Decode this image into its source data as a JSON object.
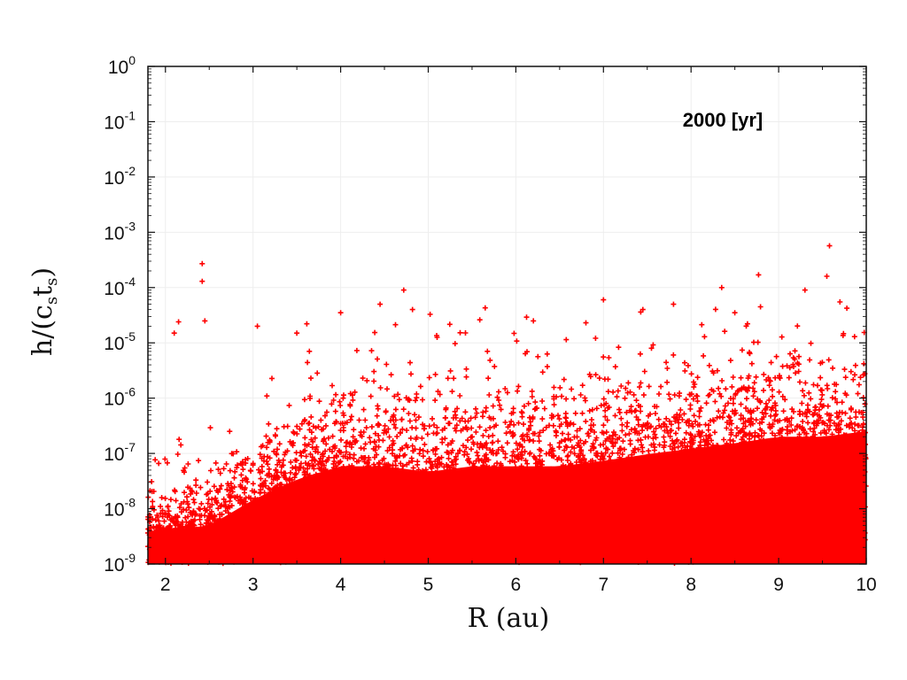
{
  "chart_data": {
    "type": "scatter",
    "title": "",
    "annotation": "2000 [yr]",
    "xlabel": "R (au)",
    "ylabel": {
      "prefix": "h/(c",
      "sub1": "s",
      "mid": "t",
      "sub2": "s",
      "suffix": ")"
    },
    "xlim": [
      1.8,
      10
    ],
    "ylim": [
      1e-09,
      1
    ],
    "yscale": "log",
    "grid": true,
    "marker": "+",
    "color": "#ff0000",
    "x_ticks": [
      "2",
      "3",
      "4",
      "5",
      "6",
      "7",
      "8",
      "9",
      "10"
    ],
    "y_ticks": [
      {
        "base": "10",
        "exp": "0"
      },
      {
        "base": "10",
        "exp": "-1"
      },
      {
        "base": "10",
        "exp": "-2"
      },
      {
        "base": "10",
        "exp": "-3"
      },
      {
        "base": "10",
        "exp": "-4"
      },
      {
        "base": "10",
        "exp": "-5"
      },
      {
        "base": "10",
        "exp": "-6"
      },
      {
        "base": "10",
        "exp": "-7"
      },
      {
        "base": "10",
        "exp": "-8"
      },
      {
        "base": "10",
        "exp": "-9"
      }
    ],
    "series": [
      {
        "values": [
          [
            2.42,
            0.00027
          ],
          [
            2.42,
            0.00013
          ],
          [
            9.58,
            0.00057
          ],
          [
            8.77,
            0.00017
          ],
          [
            9.55,
            0.00016
          ],
          [
            4.72,
            9e-05
          ],
          [
            8.35,
            0.0001
          ],
          [
            9.3,
            9e-05
          ],
          [
            7.0,
            6e-05
          ],
          [
            4.45,
            5e-05
          ],
          [
            7.8,
            5e-05
          ],
          [
            9.7,
            5.5e-05
          ],
          [
            2.15,
            2.4e-05
          ],
          [
            2.1,
            1.5e-05
          ],
          [
            2.45,
            2.5e-05
          ],
          [
            4.0,
            3.5e-05
          ],
          [
            5.65,
            4.3e-05
          ],
          [
            4.82,
            4e-05
          ],
          [
            7.45,
            4e-05
          ],
          [
            8.5,
            3.5e-05
          ],
          [
            3.05,
            2e-05
          ],
          [
            3.5,
            1.5e-05
          ],
          [
            6.2,
            2.5e-05
          ],
          [
            6.8,
            2.3e-05
          ]
        ]
      }
    ],
    "density_profile": {
      "x": [
        1.8,
        2.5,
        3.0,
        3.5,
        4.0,
        4.5,
        5.0,
        5.5,
        6.0,
        6.5,
        7.0,
        7.5,
        8.0,
        8.5,
        9.0,
        9.5,
        10.0
      ],
      "center_log10": [
        -8.6,
        -8.5,
        -8.1,
        -7.8,
        -7.6,
        -7.6,
        -7.7,
        -7.6,
        -7.6,
        -7.6,
        -7.5,
        -7.4,
        -7.3,
        -7.2,
        -7.1,
        -7.1,
        -7.0
      ],
      "spread_dex": [
        0.55,
        0.55,
        0.75,
        0.95,
        1.05,
        1.05,
        1.05,
        1.05,
        1.05,
        1.05,
        1.05,
        1.1,
        1.1,
        1.1,
        1.15,
        1.15,
        1.15
      ]
    }
  }
}
